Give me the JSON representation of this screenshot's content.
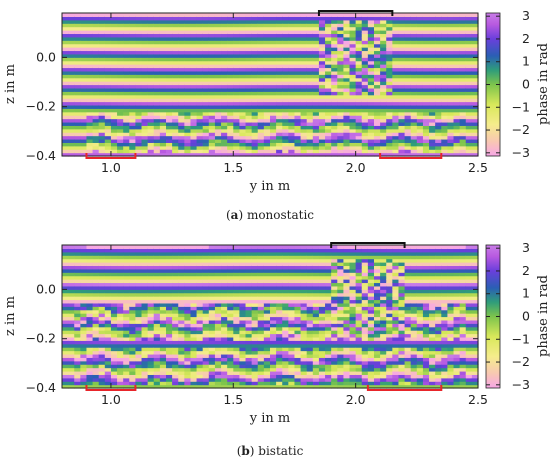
{
  "chart_data": [
    {
      "type": "heatmap",
      "caption_letter": "a",
      "caption_text": " monostatic",
      "xlabel": "y in m",
      "ylabel": "z in m",
      "colorbar_label": "phase in rad",
      "xlim": [
        0.8,
        2.5
      ],
      "ylim": [
        -0.4,
        0.18
      ],
      "xticks": [
        1.0,
        1.5,
        2.0,
        2.5
      ],
      "xtick_labels": [
        "1.0",
        "1.5",
        "2.0",
        "2.5"
      ],
      "yticks": [
        0.0,
        -0.2,
        -0.4
      ],
      "ytick_labels": [
        "0.0",
        "−0.2",
        "−0.4"
      ],
      "clim": [
        -3.14,
        3.14
      ],
      "colorbar_ticks": [
        3,
        2,
        1,
        0,
        -1,
        -2,
        -3
      ],
      "colorbar_tick_labels": [
        "3",
        "2",
        "1",
        "0",
        "−1",
        "−2",
        "−3"
      ],
      "phase_period_m": 0.07,
      "phase_offset_rad": 0.4,
      "disturbance_regions": [
        {
          "y_range": [
            1.85,
            2.15
          ],
          "z_range": [
            -0.15,
            0.15
          ],
          "strength": 2.4
        },
        {
          "y_range": [
            0.9,
            2.45
          ],
          "z_range": [
            -0.38,
            -0.22
          ],
          "strength": 1.0
        }
      ],
      "black_markers": [
        [
          1.85,
          2.15
        ]
      ],
      "red_markers": [
        [
          0.9,
          1.1
        ],
        [
          2.1,
          2.35
        ]
      ],
      "colors": {
        "black_marker": "#111111",
        "red_marker": "#e8252a"
      }
    },
    {
      "type": "heatmap",
      "caption_letter": "b",
      "caption_text": " bistatic",
      "xlabel": "y in m",
      "ylabel": "z in m",
      "colorbar_label": "phase in rad",
      "xlim": [
        0.8,
        2.5
      ],
      "ylim": [
        -0.4,
        0.18
      ],
      "xticks": [
        1.0,
        1.5,
        2.0,
        2.5
      ],
      "xtick_labels": [
        "1.0",
        "1.5",
        "2.0",
        "2.5"
      ],
      "yticks": [
        0.0,
        -0.2,
        -0.4
      ],
      "ytick_labels": [
        "0.0",
        "−0.2",
        "−0.4"
      ],
      "clim": [
        -3.14,
        3.14
      ],
      "colorbar_ticks": [
        3,
        2,
        1,
        0,
        -1,
        -2,
        -3
      ],
      "colorbar_tick_labels": [
        "3",
        "2",
        "1",
        "0",
        "−1",
        "−2",
        "−3"
      ],
      "phase_period_m": 0.075,
      "phase_offset_rad": 1.2,
      "disturbance_regions": [
        {
          "y_range": [
            1.9,
            2.2
          ],
          "z_range": [
            -0.18,
            0.12
          ],
          "strength": 2.4
        },
        {
          "y_range": [
            0.85,
            2.45
          ],
          "z_range": [
            -0.2,
            -0.05
          ],
          "strength": 1.3
        },
        {
          "y_range": [
            0.85,
            2.45
          ],
          "z_range": [
            -0.38,
            -0.24
          ],
          "strength": 1.1
        }
      ],
      "black_markers": [
        [
          1.9,
          2.2
        ]
      ],
      "red_markers": [
        [
          0.9,
          1.1
        ],
        [
          2.05,
          2.35
        ]
      ],
      "colors": {
        "black_marker": "#111111",
        "red_marker": "#e8252a"
      }
    }
  ]
}
